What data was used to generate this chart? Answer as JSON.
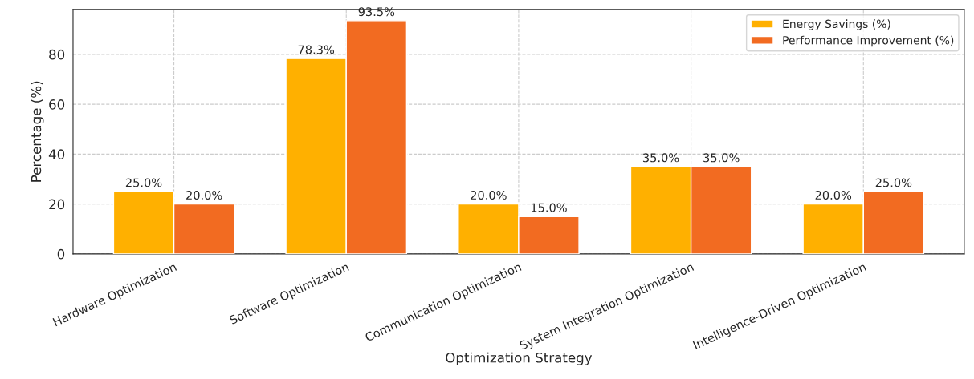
{
  "chart_data": {
    "type": "bar",
    "xlabel": "Optimization Strategy",
    "ylabel": "Percentage (%)",
    "categories": [
      "Hardware Optimization",
      "Software Optimization",
      "Communication Optimization",
      "System Integration Optimization",
      "Intelligence-Driven Optimization"
    ],
    "series": [
      {
        "name": "Energy Savings (%)",
        "color": "#ffb000",
        "values": [
          25.0,
          78.3,
          20.0,
          35.0,
          20.0
        ],
        "value_labels": [
          "25.0%",
          "78.3%",
          "20.0%",
          "35.0%",
          "20.0%"
        ]
      },
      {
        "name": "Performance Improvement (%)",
        "color": "#f26b21",
        "values": [
          20.0,
          93.5,
          15.0,
          35.0,
          25.0
        ],
        "value_labels": [
          "20.0%",
          "93.5%",
          "15.0%",
          "35.0%",
          "25.0%"
        ]
      }
    ],
    "ylim": [
      0,
      98
    ],
    "yticks": [
      0,
      20,
      40,
      60,
      80
    ],
    "grid": true,
    "legend": "top right"
  }
}
